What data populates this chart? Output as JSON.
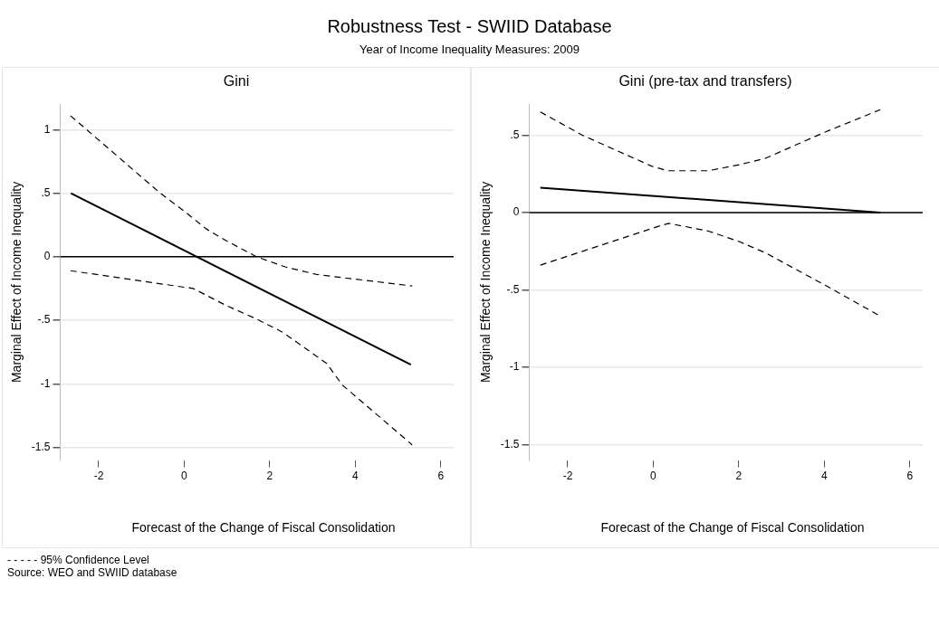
{
  "chart_data": [
    {
      "type": "line",
      "title": "Gini",
      "xlabel": "Forecast of the Change of Fiscal Consolidation",
      "ylabel": "Marginal Effect of Income Inequality",
      "annotations": [
        "Robustness Test - SWIID Database",
        "Year of Income Inequality Measures: 2009"
      ],
      "series": [
        {
          "color": "#000000",
          "line_style": "solid",
          "x": [
            -2.65,
            5.3
          ],
          "values": [
            0.5,
            -0.85
          ]
        },
        {
          "color": "#000000",
          "line_style": "dashed",
          "x": [
            -2.66,
            -0.56,
            0.07,
            0.51,
            0.96,
            1.69,
            2.36,
            3.1,
            5.33
          ],
          "values": [
            1.11,
            0.5,
            0.34,
            0.22,
            0.13,
            0.0,
            -0.08,
            -0.14,
            -0.23
          ]
        },
        {
          "color": "#000000",
          "line_style": "dashed",
          "x": [
            -2.66,
            0.21,
            0.96,
            1.69,
            2.28,
            2.58,
            3.33,
            3.7,
            5.33
          ],
          "values": [
            -0.11,
            -0.25,
            -0.38,
            -0.49,
            -0.59,
            -0.66,
            -0.84,
            -1.01,
            -1.48
          ]
        }
      ],
      "ref_lines": [
        {
          "axis": "y",
          "value": 0,
          "color": "#000000"
        }
      ],
      "xlim": [
        -2.9,
        6.3
      ],
      "xticks": [
        -2,
        0,
        2,
        4,
        6
      ],
      "ylim": [
        -1.6,
        1.2
      ],
      "yticks": [
        {
          "value": -1.5,
          "label": "-1.5"
        },
        -1,
        {
          "value": -0.5,
          "label": "-.5"
        },
        0,
        {
          "value": 0.5,
          "label": ".5"
        },
        1
      ],
      "grid": "y",
      "legend": false,
      "marker": "none"
    },
    {
      "type": "line",
      "title": "Gini (pre-tax and transfers)",
      "xlabel": "Forecast of the Change of Fiscal Consolidation",
      "ylabel": "Marginal Effect of Income Inequality",
      "annotations": [
        "- - - - - 95% Confidence Level",
        "Source: WEO and SWIID database"
      ],
      "series": [
        {
          "color": "#000000",
          "line_style": "solid",
          "x": [
            -2.64,
            5.31
          ],
          "values": [
            0.16,
            0.0
          ]
        },
        {
          "color": "#000000",
          "line_style": "dashed",
          "x": [
            -2.64,
            -1.66,
            -0.04,
            0.33,
            1.29,
            2.03,
            2.62,
            4.02,
            5.31
          ],
          "values": [
            0.65,
            0.5,
            0.3,
            0.27,
            0.27,
            0.31,
            0.35,
            0.52,
            0.665
          ]
        },
        {
          "color": "#000000",
          "line_style": "dashed",
          "x": [
            -2.64,
            0.11,
            0.36,
            1.29,
            2.03,
            2.62,
            4.02,
            5.31
          ],
          "values": [
            -0.34,
            -0.09,
            -0.07,
            -0.12,
            -0.19,
            -0.26,
            -0.47,
            -0.67
          ]
        }
      ],
      "ref_lines": [
        {
          "axis": "y",
          "value": 0,
          "color": "#000000"
        }
      ],
      "xlim": [
        -2.9,
        6.3
      ],
      "xticks": [
        -2,
        0,
        2,
        4,
        6
      ],
      "ylim": [
        -1.6,
        0.7
      ],
      "yticks": [
        {
          "value": -1.5,
          "label": "-1.5"
        },
        -1,
        {
          "value": -0.5,
          "label": "-.5"
        },
        0,
        {
          "value": 0.5,
          "label": ".5"
        }
      ],
      "grid": "y",
      "legend": false,
      "marker": "none"
    }
  ]
}
